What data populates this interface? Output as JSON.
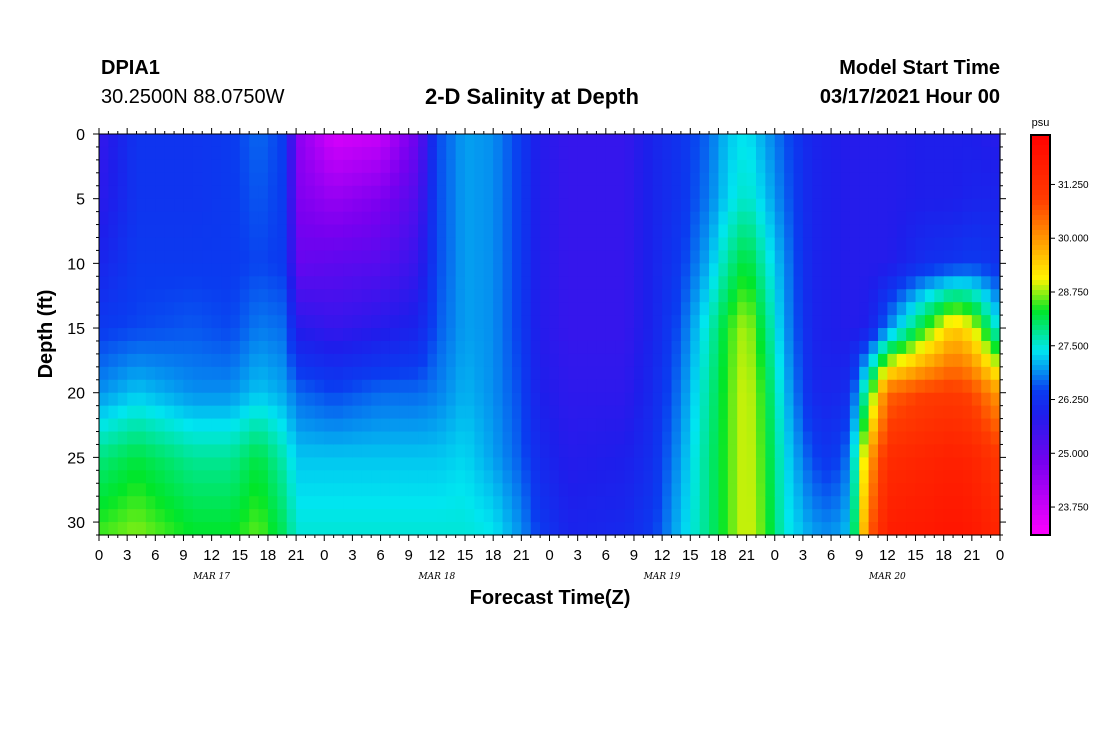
{
  "header": {
    "station": "DPIA1",
    "coords": "30.2500N 88.0750W",
    "title": "2-D Salinity at Depth",
    "model_start_label": "Model Start Time",
    "model_start_value": "03/17/2021 Hour 00"
  },
  "chart_data": {
    "type": "heatmap",
    "title": "2-D Salinity at Depth",
    "xlabel": "Forecast Time(Z)",
    "ylabel": "Depth (ft)",
    "x_hours": [
      0,
      96
    ],
    "x_tick_labels": [
      "0",
      "3",
      "6",
      "9",
      "12",
      "15",
      "18",
      "21",
      "0",
      "3",
      "6",
      "9",
      "12",
      "15",
      "18",
      "21",
      "0",
      "3",
      "6",
      "9",
      "12",
      "15",
      "18",
      "21",
      "0",
      "3",
      "6",
      "9",
      "12",
      "15",
      "18",
      "21",
      "0"
    ],
    "day_labels": [
      {
        "label": "MAR 17",
        "hour": 12
      },
      {
        "label": "MAR 18",
        "hour": 36
      },
      {
        "label": "MAR 19",
        "hour": 60
      },
      {
        "label": "MAR 20",
        "hour": 84
      }
    ],
    "y_range": [
      0,
      31
    ],
    "y_ticks": [
      0,
      5,
      10,
      15,
      20,
      25,
      30
    ],
    "colorbar": {
      "unit": "psu",
      "range": [
        23.1,
        32.4
      ],
      "ticks": [
        "23.750",
        "25.000",
        "26.250",
        "27.500",
        "28.750",
        "30.000",
        "31.250"
      ]
    },
    "depth_profile_depths_ft": [
      0,
      5,
      10,
      15,
      20,
      25,
      31
    ],
    "salinity_profiles": [
      {
        "hour": 0,
        "values": [
          25.6,
          25.7,
          26.0,
          26.4,
          26.9,
          27.9,
          28.5
        ]
      },
      {
        "hour": 4,
        "values": [
          26.3,
          26.3,
          26.4,
          26.5,
          27.2,
          28.2,
          28.7
        ]
      },
      {
        "hour": 10,
        "values": [
          26.3,
          26.3,
          26.4,
          26.6,
          26.9,
          27.8,
          28.3
        ]
      },
      {
        "hour": 14,
        "values": [
          26.4,
          26.4,
          26.4,
          26.5,
          26.9,
          27.8,
          28.3
        ]
      },
      {
        "hour": 17,
        "values": [
          26.7,
          26.6,
          26.5,
          26.8,
          27.2,
          28.2,
          28.6
        ]
      },
      {
        "hour": 20,
        "values": [
          26.4,
          26.4,
          26.4,
          26.7,
          27.0,
          27.6,
          28.0
        ]
      },
      {
        "hour": 21,
        "values": [
          24.6,
          24.7,
          25.0,
          25.8,
          26.7,
          27.2,
          27.5
        ]
      },
      {
        "hour": 25,
        "values": [
          23.6,
          24.4,
          25.1,
          25.6,
          26.5,
          27.2,
          27.5
        ]
      },
      {
        "hour": 30,
        "values": [
          23.8,
          24.7,
          25.2,
          25.8,
          26.7,
          27.2,
          27.5
        ]
      },
      {
        "hour": 34,
        "values": [
          25.0,
          25.3,
          25.6,
          26.0,
          26.7,
          27.2,
          27.5
        ]
      },
      {
        "hour": 36,
        "values": [
          26.5,
          26.5,
          26.5,
          26.6,
          26.8,
          27.2,
          27.5
        ]
      },
      {
        "hour": 39,
        "values": [
          27.0,
          27.0,
          27.0,
          27.0,
          27.1,
          27.3,
          27.5
        ]
      },
      {
        "hour": 42,
        "values": [
          26.9,
          26.9,
          26.9,
          26.9,
          26.9,
          27.0,
          27.4
        ]
      },
      {
        "hour": 45,
        "values": [
          26.4,
          26.4,
          26.4,
          26.4,
          26.5,
          26.6,
          26.9
        ]
      },
      {
        "hour": 47,
        "values": [
          25.8,
          25.8,
          25.8,
          25.8,
          25.9,
          26.1,
          26.4
        ]
      },
      {
        "hour": 50,
        "values": [
          25.6,
          25.6,
          25.6,
          25.6,
          25.7,
          25.8,
          26.0
        ]
      },
      {
        "hour": 56,
        "values": [
          25.6,
          25.6,
          25.6,
          25.6,
          25.7,
          25.9,
          26.1
        ]
      },
      {
        "hour": 59,
        "values": [
          26.0,
          26.0,
          26.0,
          26.0,
          26.1,
          26.2,
          26.4
        ]
      },
      {
        "hour": 62,
        "values": [
          26.3,
          26.3,
          26.4,
          26.6,
          26.8,
          27.0,
          27.2
        ]
      },
      {
        "hour": 65,
        "values": [
          26.7,
          26.8,
          27.1,
          27.6,
          27.8,
          27.9,
          27.9
        ]
      },
      {
        "hour": 67,
        "values": [
          27.2,
          27.3,
          27.8,
          28.4,
          28.5,
          28.5,
          28.5
        ]
      },
      {
        "hour": 69,
        "values": [
          27.4,
          27.6,
          28.3,
          28.9,
          29.0,
          29.0,
          29.0
        ]
      },
      {
        "hour": 71,
        "values": [
          27.0,
          27.2,
          27.6,
          28.0,
          28.3,
          28.4,
          28.5
        ]
      },
      {
        "hour": 73,
        "values": [
          26.6,
          26.7,
          26.9,
          27.0,
          27.2,
          27.4,
          27.5
        ]
      },
      {
        "hour": 76,
        "values": [
          26.0,
          26.0,
          26.0,
          26.0,
          26.1,
          26.5,
          27.0
        ]
      },
      {
        "hour": 78,
        "values": [
          25.9,
          25.9,
          25.9,
          25.9,
          26.0,
          26.3,
          26.9
        ]
      },
      {
        "hour": 80,
        "values": [
          25.8,
          25.8,
          25.8,
          25.8,
          26.2,
          26.8,
          27.2
        ]
      },
      {
        "hour": 82,
        "values": [
          25.8,
          25.8,
          25.8,
          25.9,
          28.2,
          29.8,
          30.5
        ]
      },
      {
        "hour": 84,
        "values": [
          25.8,
          25.8,
          25.8,
          26.8,
          30.5,
          31.3,
          31.7
        ]
      },
      {
        "hour": 88,
        "values": [
          25.9,
          25.9,
          26.2,
          28.4,
          30.9,
          31.5,
          31.8
        ]
      },
      {
        "hour": 91,
        "values": [
          25.9,
          25.9,
          26.3,
          29.5,
          31.0,
          31.6,
          31.9
        ]
      },
      {
        "hour": 93,
        "values": [
          25.9,
          26.0,
          26.4,
          29.1,
          30.8,
          31.5,
          31.8
        ]
      },
      {
        "hour": 95,
        "values": [
          25.8,
          26.0,
          26.3,
          27.9,
          30.2,
          31.2,
          31.6
        ]
      },
      {
        "hour": 96,
        "values": [
          25.8,
          26.0,
          26.2,
          27.3,
          29.9,
          31.0,
          31.5
        ]
      }
    ]
  }
}
